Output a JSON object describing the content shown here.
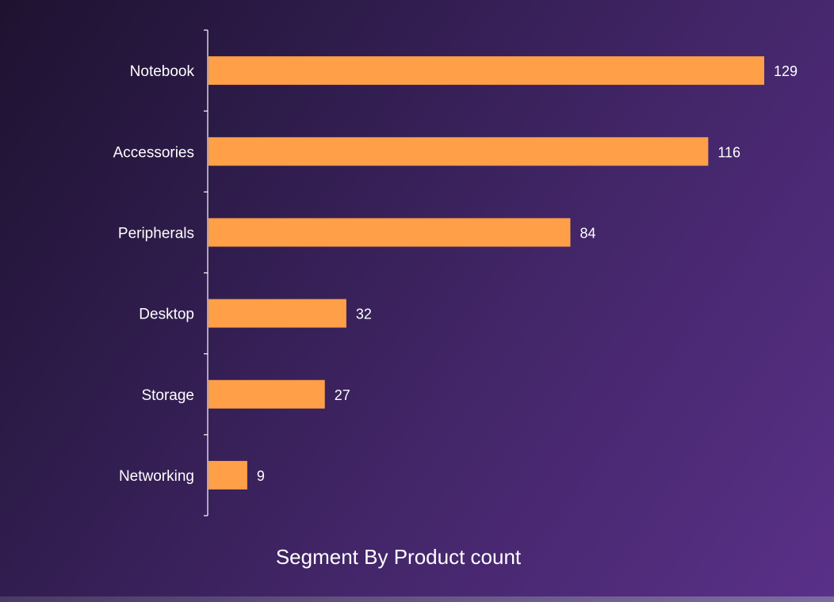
{
  "chart_data": {
    "type": "bar",
    "orientation": "horizontal",
    "title": "Segment By Product count",
    "categories": [
      "Notebook",
      "Accessories",
      "Peripherals",
      "Desktop",
      "Storage",
      "Networking"
    ],
    "values": [
      129,
      116,
      84,
      32,
      27,
      9
    ],
    "xlabel": "",
    "ylabel": "",
    "xlim": [
      0,
      129
    ],
    "grid": false,
    "legend": "none"
  },
  "colors": {
    "bar": "#ff9f47",
    "axis": "#ffffff",
    "text": "#ffffff"
  }
}
